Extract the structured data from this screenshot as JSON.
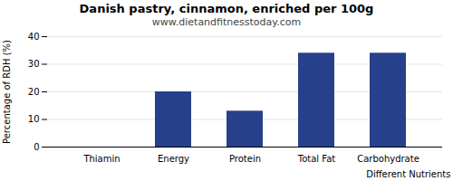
{
  "chart_data": {
    "type": "bar",
    "title": "Danish pastry, cinnamon, enriched per 100g",
    "subtitle": "www.dietandfitnesstoday.com",
    "xlabel": "Different Nutrients",
    "ylabel": "Percentage of RDH (%)",
    "categories": [
      "Thiamin",
      "Energy",
      "Protein",
      "Total Fat",
      "Carbohydrate"
    ],
    "values": [
      0,
      20,
      13,
      34,
      34
    ],
    "color": "#27408B",
    "ylim": [
      0,
      40
    ],
    "yticks": [
      0,
      10,
      20,
      30,
      40
    ],
    "grid": true
  }
}
